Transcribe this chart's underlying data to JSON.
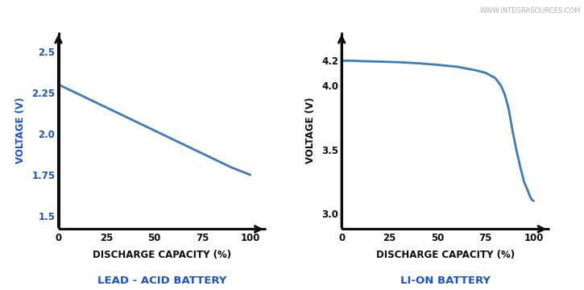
{
  "background_color": "#ffffff",
  "line_color": "#3a7abf",
  "axis_color": "#0d0d0d",
  "label_color": "#0d0d0d",
  "title_color": "#1a52cc",
  "watermark": "WWW.INTEGRASOURCES.COM",
  "watermark_color": "#b0b0b0",
  "left": {
    "title": "LEAD - ACID BATTERY",
    "xlabel": "DISCHARGE CAPACITY (%)",
    "ylabel": "VOLTAGE (V)",
    "ylabel_blue": true,
    "xlim": [
      0,
      108
    ],
    "ylim": [
      1.42,
      2.62
    ],
    "xticks": [
      0,
      25,
      50,
      75,
      100
    ],
    "yticks": [
      1.5,
      1.75,
      2.0,
      2.25,
      2.5
    ],
    "ytick_labels": [
      "1.5",
      "1.75",
      "2.0",
      "2.25",
      "2.5"
    ],
    "curve_x": [
      0,
      10,
      20,
      30,
      40,
      50,
      60,
      70,
      80,
      90,
      100
    ],
    "curve_y": [
      2.3,
      2.244,
      2.188,
      2.132,
      2.076,
      2.02,
      1.964,
      1.908,
      1.852,
      1.796,
      1.75
    ]
  },
  "right": {
    "title": "LI-ON BATTERY",
    "xlabel": "DISCHARGE CAPACITY (%)",
    "ylabel": "VOLTAGE (V)",
    "ylabel_blue": false,
    "xlim": [
      0,
      108
    ],
    "ylim": [
      2.88,
      4.42
    ],
    "xticks": [
      0,
      25,
      50,
      75,
      100
    ],
    "yticks": [
      3.0,
      3.5,
      4.0,
      4.2
    ],
    "ytick_labels": [
      "3.0",
      "3.5",
      "4.0",
      "4.2"
    ],
    "curve_x": [
      0,
      5,
      10,
      20,
      30,
      40,
      50,
      60,
      70,
      75,
      80,
      83,
      85,
      87,
      89,
      91,
      93,
      95,
      97,
      98,
      99,
      100
    ],
    "curve_y": [
      4.195,
      4.195,
      4.192,
      4.188,
      4.183,
      4.175,
      4.163,
      4.148,
      4.12,
      4.1,
      4.06,
      4.0,
      3.93,
      3.82,
      3.65,
      3.5,
      3.37,
      3.25,
      3.18,
      3.14,
      3.11,
      3.1
    ]
  },
  "line_width": 2.0,
  "tick_fontsize": 8.5,
  "label_fontsize": 8.5,
  "title_fontsize": 9.5
}
